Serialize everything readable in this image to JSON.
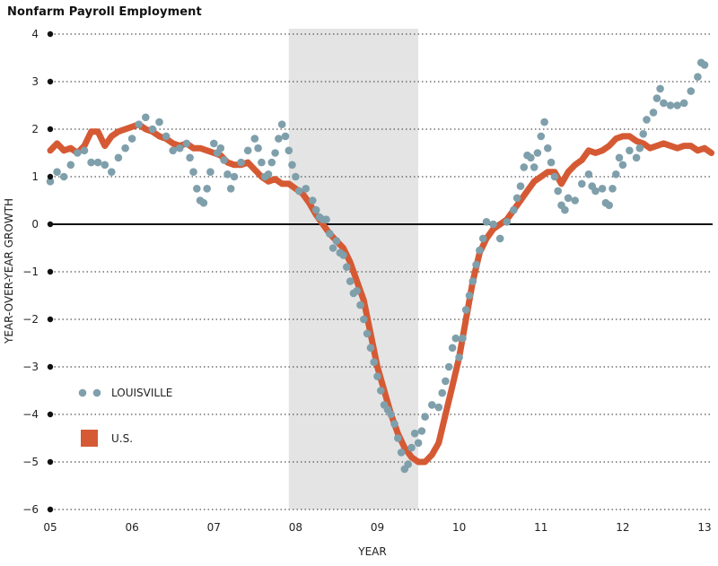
{
  "chart_data": {
    "type": "line",
    "title": "Nonfarm Payroll Employment",
    "xlabel": "YEAR",
    "ylabel": "YEAR-OVER-YEAR GROWTH",
    "ylim": [
      -6,
      4
    ],
    "xlim": [
      2005,
      2013.1
    ],
    "x_tick_labels": [
      "05",
      "06",
      "07",
      "08",
      "09",
      "10",
      "11",
      "12",
      "13"
    ],
    "y_tick_values": [
      -6,
      -5,
      -4,
      -3,
      -2,
      -1,
      0,
      1,
      2,
      3,
      4
    ],
    "grid": "dotted horizontal",
    "recession_shading": {
      "start": 2007.917,
      "end": 2009.5
    },
    "legend_position": "left",
    "colors": {
      "louisville": "#7f9fab",
      "us": "#d55a34",
      "recession": "#e4e4e4"
    },
    "series": [
      {
        "name": "LOUISVILLE",
        "style": "dots",
        "points": [
          [
            2005.0,
            0.9
          ],
          [
            2005.083,
            1.1
          ],
          [
            2005.167,
            1.0
          ],
          [
            2005.25,
            1.25
          ],
          [
            2005.333,
            1.5
          ],
          [
            2005.417,
            1.55
          ],
          [
            2005.5,
            1.3
          ],
          [
            2005.583,
            1.3
          ],
          [
            2005.667,
            1.25
          ],
          [
            2005.75,
            1.1
          ],
          [
            2005.833,
            1.4
          ],
          [
            2005.917,
            1.6
          ],
          [
            2006.0,
            1.8
          ],
          [
            2006.083,
            2.1
          ],
          [
            2006.167,
            2.25
          ],
          [
            2006.25,
            2.0
          ],
          [
            2006.333,
            2.15
          ],
          [
            2006.417,
            1.85
          ],
          [
            2006.5,
            1.55
          ],
          [
            2006.583,
            1.6
          ],
          [
            2006.667,
            1.7
          ],
          [
            2006.708,
            1.4
          ],
          [
            2006.75,
            1.1
          ],
          [
            2006.792,
            0.75
          ],
          [
            2006.833,
            0.5
          ],
          [
            2006.875,
            0.45
          ],
          [
            2006.917,
            0.75
          ],
          [
            2006.958,
            1.1
          ],
          [
            2007.0,
            1.7
          ],
          [
            2007.042,
            1.5
          ],
          [
            2007.083,
            1.6
          ],
          [
            2007.125,
            1.35
          ],
          [
            2007.167,
            1.05
          ],
          [
            2007.208,
            0.75
          ],
          [
            2007.25,
            1.0
          ],
          [
            2007.333,
            1.3
          ],
          [
            2007.417,
            1.55
          ],
          [
            2007.5,
            1.8
          ],
          [
            2007.542,
            1.6
          ],
          [
            2007.583,
            1.3
          ],
          [
            2007.625,
            1.0
          ],
          [
            2007.667,
            1.05
          ],
          [
            2007.708,
            1.3
          ],
          [
            2007.75,
            1.5
          ],
          [
            2007.792,
            1.8
          ],
          [
            2007.833,
            2.1
          ],
          [
            2007.875,
            1.85
          ],
          [
            2007.917,
            1.55
          ],
          [
            2007.958,
            1.25
          ],
          [
            2008.0,
            1.0
          ],
          [
            2008.042,
            0.7
          ],
          [
            2008.125,
            0.75
          ],
          [
            2008.208,
            0.5
          ],
          [
            2008.25,
            0.3
          ],
          [
            2008.292,
            0.15
          ],
          [
            2008.333,
            0.1
          ],
          [
            2008.375,
            0.1
          ],
          [
            2008.417,
            -0.2
          ],
          [
            2008.458,
            -0.5
          ],
          [
            2008.5,
            -0.35
          ],
          [
            2008.542,
            -0.6
          ],
          [
            2008.583,
            -0.65
          ],
          [
            2008.625,
            -0.9
          ],
          [
            2008.667,
            -1.2
          ],
          [
            2008.708,
            -1.45
          ],
          [
            2008.75,
            -1.4
          ],
          [
            2008.792,
            -1.7
          ],
          [
            2008.833,
            -2.0
          ],
          [
            2008.875,
            -2.3
          ],
          [
            2008.917,
            -2.6
          ],
          [
            2008.958,
            -2.9
          ],
          [
            2009.0,
            -3.2
          ],
          [
            2009.042,
            -3.5
          ],
          [
            2009.083,
            -3.8
          ],
          [
            2009.125,
            -3.9
          ],
          [
            2009.167,
            -4.0
          ],
          [
            2009.208,
            -4.2
          ],
          [
            2009.25,
            -4.5
          ],
          [
            2009.292,
            -4.8
          ],
          [
            2009.333,
            -5.15
          ],
          [
            2009.375,
            -5.05
          ],
          [
            2009.417,
            -4.7
          ],
          [
            2009.458,
            -4.4
          ],
          [
            2009.5,
            -4.6
          ],
          [
            2009.542,
            -4.35
          ],
          [
            2009.583,
            -4.05
          ],
          [
            2009.667,
            -3.8
          ],
          [
            2009.75,
            -3.85
          ],
          [
            2009.792,
            -3.55
          ],
          [
            2009.833,
            -3.3
          ],
          [
            2009.875,
            -3.0
          ],
          [
            2009.917,
            -2.6
          ],
          [
            2009.958,
            -2.4
          ],
          [
            2010.0,
            -2.8
          ],
          [
            2010.042,
            -2.4
          ],
          [
            2010.083,
            -1.8
          ],
          [
            2010.125,
            -1.5
          ],
          [
            2010.167,
            -1.2
          ],
          [
            2010.208,
            -0.85
          ],
          [
            2010.25,
            -0.55
          ],
          [
            2010.292,
            -0.3
          ],
          [
            2010.333,
            0.05
          ],
          [
            2010.417,
            0.0
          ],
          [
            2010.5,
            -0.3
          ],
          [
            2010.583,
            0.05
          ],
          [
            2010.667,
            0.3
          ],
          [
            2010.708,
            0.55
          ],
          [
            2010.75,
            0.8
          ],
          [
            2010.792,
            1.2
          ],
          [
            2010.833,
            1.45
          ],
          [
            2010.875,
            1.4
          ],
          [
            2010.917,
            1.2
          ],
          [
            2010.958,
            1.5
          ],
          [
            2011.0,
            1.85
          ],
          [
            2011.042,
            2.15
          ],
          [
            2011.083,
            1.6
          ],
          [
            2011.125,
            1.3
          ],
          [
            2011.167,
            1.0
          ],
          [
            2011.208,
            0.7
          ],
          [
            2011.25,
            0.4
          ],
          [
            2011.292,
            0.3
          ],
          [
            2011.333,
            0.55
          ],
          [
            2011.417,
            0.5
          ],
          [
            2011.5,
            0.85
          ],
          [
            2011.583,
            1.05
          ],
          [
            2011.625,
            0.8
          ],
          [
            2011.667,
            0.7
          ],
          [
            2011.75,
            0.75
          ],
          [
            2011.792,
            0.45
          ],
          [
            2011.833,
            0.4
          ],
          [
            2011.875,
            0.75
          ],
          [
            2011.917,
            1.05
          ],
          [
            2011.958,
            1.4
          ],
          [
            2012.0,
            1.25
          ],
          [
            2012.083,
            1.55
          ],
          [
            2012.167,
            1.4
          ],
          [
            2012.208,
            1.6
          ],
          [
            2012.25,
            1.9
          ],
          [
            2012.292,
            2.2
          ],
          [
            2012.375,
            2.35
          ],
          [
            2012.417,
            2.65
          ],
          [
            2012.458,
            2.85
          ],
          [
            2012.5,
            2.55
          ],
          [
            2012.583,
            2.5
          ],
          [
            2012.667,
            2.5
          ],
          [
            2012.75,
            2.55
          ],
          [
            2012.833,
            2.8
          ],
          [
            2012.917,
            3.1
          ],
          [
            2012.958,
            3.4
          ],
          [
            2013.0,
            3.35
          ]
        ]
      },
      {
        "name": "U.S.",
        "style": "line",
        "points": [
          [
            2005.0,
            1.55
          ],
          [
            2005.083,
            1.7
          ],
          [
            2005.167,
            1.55
          ],
          [
            2005.25,
            1.6
          ],
          [
            2005.333,
            1.5
          ],
          [
            2005.417,
            1.65
          ],
          [
            2005.5,
            1.95
          ],
          [
            2005.583,
            1.95
          ],
          [
            2005.667,
            1.65
          ],
          [
            2005.75,
            1.85
          ],
          [
            2005.833,
            1.95
          ],
          [
            2005.917,
            2.0
          ],
          [
            2006.0,
            2.05
          ],
          [
            2006.083,
            2.1
          ],
          [
            2006.167,
            2.0
          ],
          [
            2006.25,
            1.95
          ],
          [
            2006.333,
            1.85
          ],
          [
            2006.417,
            1.8
          ],
          [
            2006.5,
            1.7
          ],
          [
            2006.583,
            1.65
          ],
          [
            2006.667,
            1.7
          ],
          [
            2006.75,
            1.6
          ],
          [
            2006.833,
            1.6
          ],
          [
            2006.917,
            1.55
          ],
          [
            2007.0,
            1.5
          ],
          [
            2007.083,
            1.45
          ],
          [
            2007.167,
            1.3
          ],
          [
            2007.25,
            1.25
          ],
          [
            2007.333,
            1.25
          ],
          [
            2007.417,
            1.3
          ],
          [
            2007.5,
            1.15
          ],
          [
            2007.583,
            1.0
          ],
          [
            2007.667,
            0.9
          ],
          [
            2007.75,
            0.95
          ],
          [
            2007.833,
            0.85
          ],
          [
            2007.917,
            0.85
          ],
          [
            2008.0,
            0.75
          ],
          [
            2008.083,
            0.65
          ],
          [
            2008.167,
            0.45
          ],
          [
            2008.25,
            0.2
          ],
          [
            2008.333,
            0.0
          ],
          [
            2008.417,
            -0.2
          ],
          [
            2008.5,
            -0.35
          ],
          [
            2008.583,
            -0.5
          ],
          [
            2008.667,
            -0.8
          ],
          [
            2008.75,
            -1.2
          ],
          [
            2008.833,
            -1.6
          ],
          [
            2008.917,
            -2.3
          ],
          [
            2009.0,
            -3.0
          ],
          [
            2009.083,
            -3.5
          ],
          [
            2009.167,
            -4.0
          ],
          [
            2009.25,
            -4.4
          ],
          [
            2009.333,
            -4.7
          ],
          [
            2009.417,
            -4.9
          ],
          [
            2009.5,
            -5.0
          ],
          [
            2009.583,
            -5.0
          ],
          [
            2009.667,
            -4.85
          ],
          [
            2009.75,
            -4.6
          ],
          [
            2009.833,
            -4.0
          ],
          [
            2009.917,
            -3.4
          ],
          [
            2010.0,
            -2.8
          ],
          [
            2010.083,
            -2.0
          ],
          [
            2010.167,
            -1.2
          ],
          [
            2010.25,
            -0.6
          ],
          [
            2010.333,
            -0.3
          ],
          [
            2010.417,
            -0.1
          ],
          [
            2010.5,
            0.0
          ],
          [
            2010.583,
            0.1
          ],
          [
            2010.667,
            0.3
          ],
          [
            2010.75,
            0.5
          ],
          [
            2010.833,
            0.7
          ],
          [
            2010.917,
            0.9
          ],
          [
            2011.0,
            1.0
          ],
          [
            2011.083,
            1.1
          ],
          [
            2011.167,
            1.1
          ],
          [
            2011.25,
            0.85
          ],
          [
            2011.333,
            1.1
          ],
          [
            2011.417,
            1.25
          ],
          [
            2011.5,
            1.35
          ],
          [
            2011.583,
            1.55
          ],
          [
            2011.667,
            1.5
          ],
          [
            2011.75,
            1.55
          ],
          [
            2011.833,
            1.65
          ],
          [
            2011.917,
            1.8
          ],
          [
            2012.0,
            1.85
          ],
          [
            2012.083,
            1.85
          ],
          [
            2012.167,
            1.75
          ],
          [
            2012.25,
            1.7
          ],
          [
            2012.333,
            1.6
          ],
          [
            2012.417,
            1.65
          ],
          [
            2012.5,
            1.7
          ],
          [
            2012.583,
            1.65
          ],
          [
            2012.667,
            1.6
          ],
          [
            2012.75,
            1.65
          ],
          [
            2012.833,
            1.65
          ],
          [
            2012.917,
            1.55
          ],
          [
            2013.0,
            1.6
          ],
          [
            2013.083,
            1.5
          ]
        ]
      }
    ]
  }
}
